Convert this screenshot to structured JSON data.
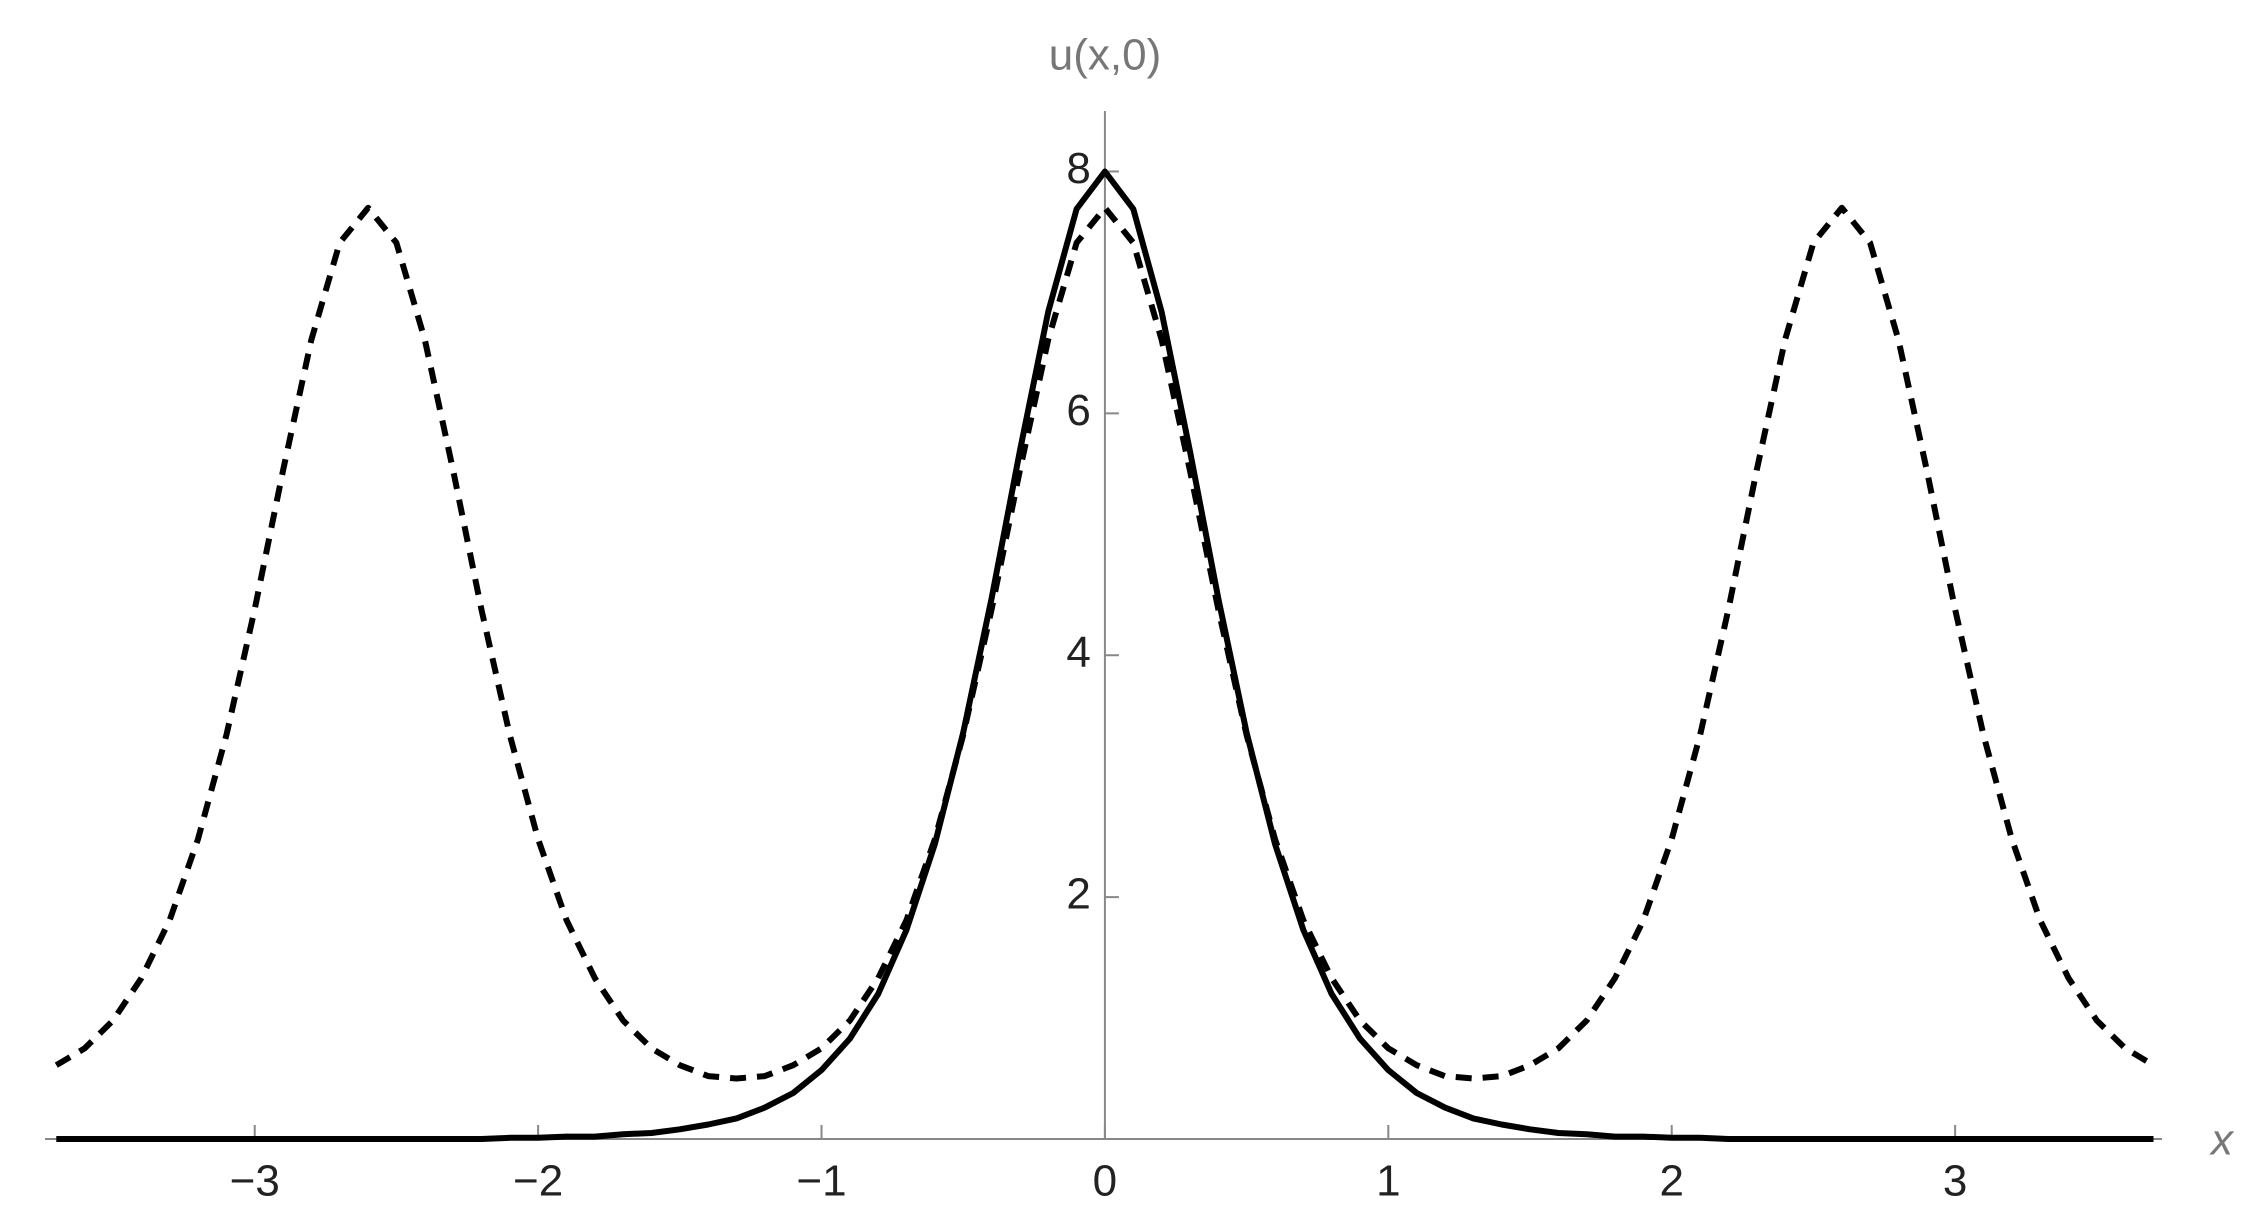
{
  "chart_data": {
    "type": "line",
    "x_label": "x",
    "y_label": "u(x,0)",
    "x": [
      -3.7,
      -3.6,
      -3.5,
      -3.4,
      -3.3,
      -3.2,
      -3.1,
      -3.0,
      -2.9,
      -2.8,
      -2.7,
      -2.6,
      -2.5,
      -2.4,
      -2.3,
      -2.2,
      -2.1,
      -2.0,
      -1.9,
      -1.8,
      -1.7,
      -1.6,
      -1.5,
      -1.4,
      -1.3,
      -1.2,
      -1.1,
      -1.0,
      -0.9,
      -0.8,
      -0.7,
      -0.6,
      -0.5,
      -0.4,
      -0.3,
      -0.2,
      -0.1,
      0,
      0.1,
      0.2,
      0.3,
      0.4,
      0.5,
      0.6,
      0.7,
      0.8,
      0.9,
      1.0,
      1.1,
      1.2,
      1.3,
      1.4,
      1.5,
      1.6,
      1.7,
      1.8,
      1.9,
      2.0,
      2.1,
      2.2,
      2.3,
      2.4,
      2.5,
      2.6,
      2.7,
      2.8,
      2.9,
      3.0,
      3.1,
      3.2,
      3.3,
      3.4,
      3.5,
      3.6,
      3.7
    ],
    "series": [
      {
        "color": "#000000",
        "line_style": "dashed",
        "values": [
          0.61,
          0.75,
          0.98,
          1.33,
          1.81,
          2.48,
          3.34,
          4.38,
          5.53,
          6.61,
          7.41,
          7.7,
          7.41,
          6.61,
          5.53,
          4.38,
          3.34,
          2.48,
          1.81,
          1.33,
          0.98,
          0.75,
          0.61,
          0.52,
          0.5,
          0.52,
          0.61,
          0.75,
          0.98,
          1.33,
          1.81,
          2.48,
          3.34,
          4.38,
          5.53,
          6.61,
          7.41,
          7.7,
          7.41,
          6.61,
          5.53,
          4.38,
          3.34,
          2.48,
          1.81,
          1.33,
          0.98,
          0.75,
          0.61,
          0.52,
          0.5,
          0.52,
          0.61,
          0.75,
          0.98,
          1.33,
          1.81,
          2.48,
          3.34,
          4.38,
          5.53,
          6.61,
          7.41,
          7.7,
          7.41,
          6.61,
          5.53,
          4.38,
          3.34,
          2.48,
          1.81,
          1.33,
          0.98,
          0.75,
          0.61
        ]
      },
      {
        "color": "#000000",
        "line_style": "solid",
        "values": [
          0,
          0,
          0,
          0,
          0,
          0,
          0,
          0,
          0,
          0,
          0,
          0,
          0,
          0,
          0,
          0,
          0.01,
          0.01,
          0.02,
          0.02,
          0.04,
          0.05,
          0.08,
          0.12,
          0.17,
          0.26,
          0.38,
          0.57,
          0.83,
          1.2,
          1.73,
          2.44,
          3.36,
          4.47,
          5.69,
          6.84,
          7.69,
          8,
          7.69,
          6.84,
          5.69,
          4.47,
          3.36,
          2.44,
          1.73,
          1.2,
          0.83,
          0.57,
          0.38,
          0.26,
          0.17,
          0.12,
          0.08,
          0.05,
          0.04,
          0.02,
          0.02,
          0.01,
          0.01,
          0,
          0,
          0,
          0,
          0,
          0,
          0,
          0,
          0,
          0,
          0,
          0,
          0,
          0,
          0,
          0
        ]
      }
    ],
    "xlim": [
      -3.74,
      3.73
    ],
    "ylim": [
      0,
      8.5
    ],
    "xticks": [
      {
        "value": -3,
        "label": "−3"
      },
      {
        "value": -2,
        "label": "−2"
      },
      {
        "value": -1,
        "label": "−1"
      },
      0,
      1,
      2,
      3
    ],
    "yticks": [
      2,
      4,
      6,
      8
    ]
  }
}
